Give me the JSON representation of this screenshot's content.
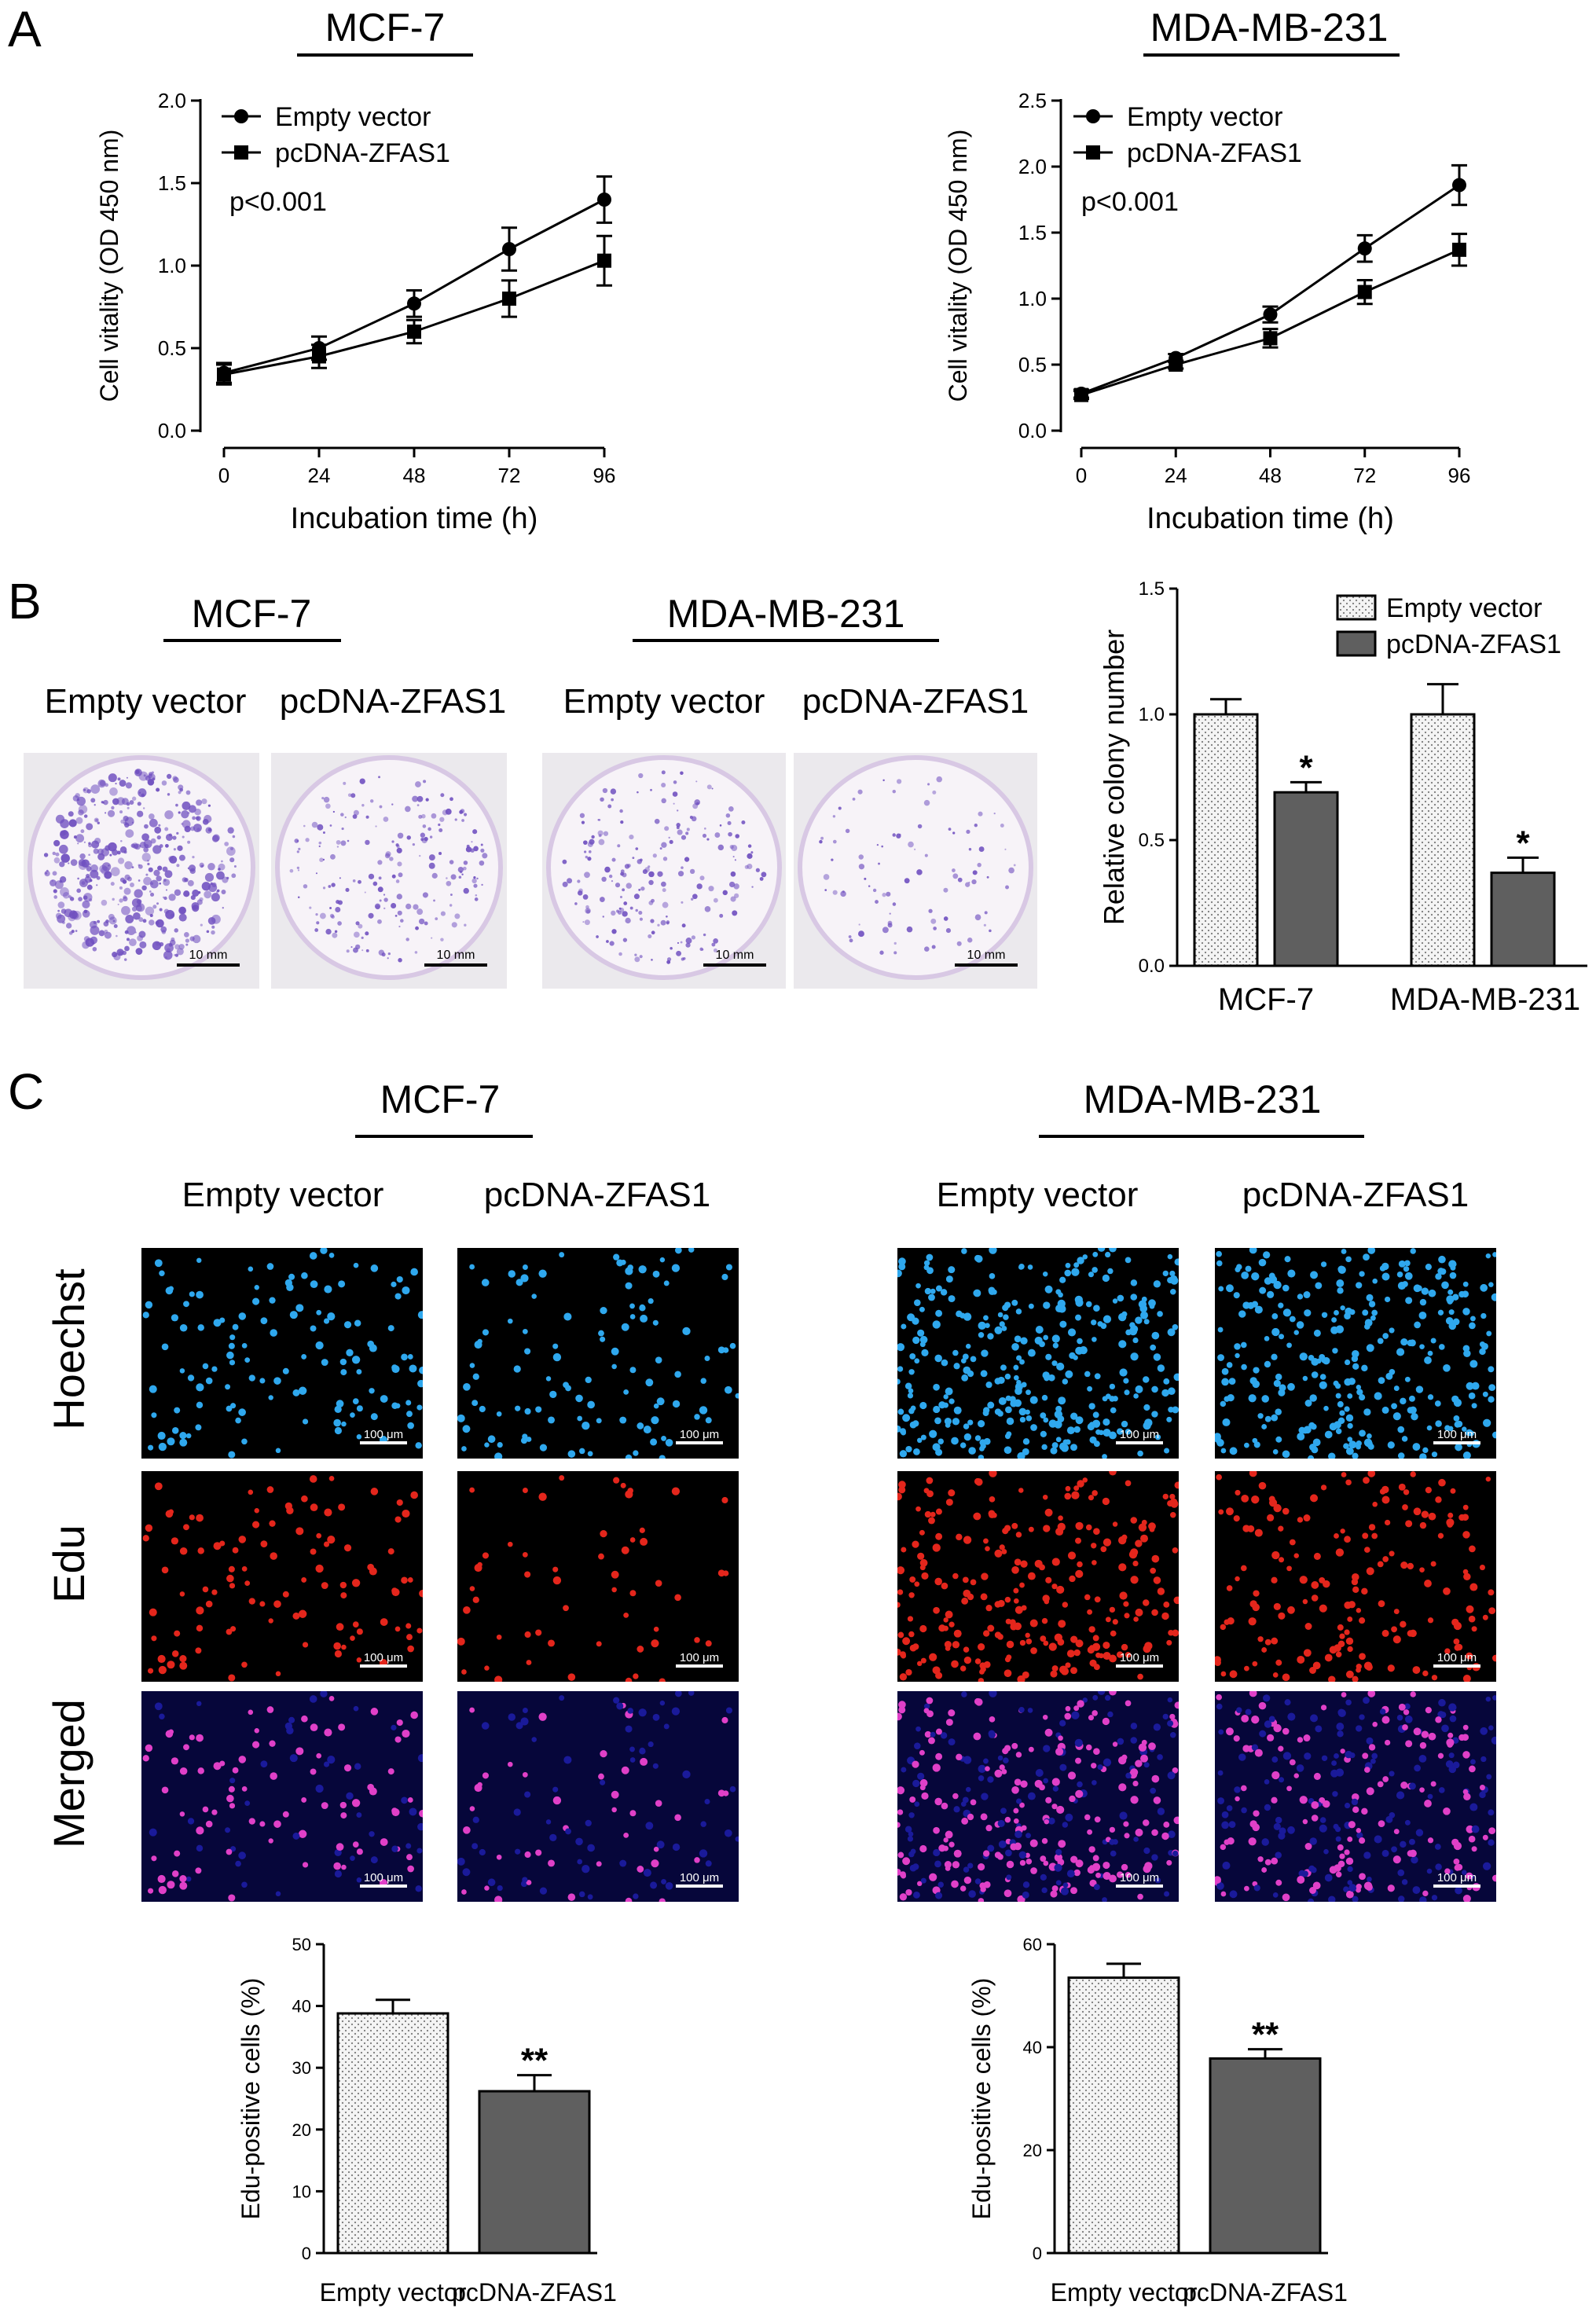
{
  "panels": {
    "a": {
      "letter": "A",
      "charts": [
        {
          "title": "MCF-7",
          "stat": "p<0.001"
        },
        {
          "title": "MDA-MB-231",
          "stat": "p<0.001"
        }
      ]
    },
    "b": {
      "letter": "B",
      "groups": [
        {
          "title": "MCF-7",
          "columns": [
            "Empty vector",
            "pcDNA-ZFAS1"
          ]
        },
        {
          "title": "MDA-MB-231",
          "columns": [
            "Empty vector",
            "pcDNA-ZFAS1"
          ]
        }
      ],
      "scale_bar": "10 mm",
      "colony_density": [
        {
          "group": "MCF-7",
          "condition": "Empty vector",
          "level": "high"
        },
        {
          "group": "MCF-7",
          "condition": "pcDNA-ZFAS1",
          "level": "medium"
        },
        {
          "group": "MDA-MB-231",
          "condition": "Empty vector",
          "level": "medium"
        },
        {
          "group": "MDA-MB-231",
          "condition": "pcDNA-ZFAS1",
          "level": "low"
        }
      ]
    },
    "c": {
      "letter": "C",
      "groups": [
        {
          "title": "MCF-7",
          "columns": [
            "Empty vector",
            "pcDNA-ZFAS1"
          ]
        },
        {
          "title": "MDA-MB-231",
          "columns": [
            "Empty vector",
            "pcDNA-ZFAS1"
          ]
        }
      ],
      "rows": [
        "Hoechst",
        "Edu",
        "Merged"
      ],
      "scale_bar": "100 μm"
    }
  },
  "colors": {
    "line": "#000000",
    "bar_empty": "#f4f4f4",
    "bar_zfas1": "#5f5f5f",
    "hoechst": "#2fa8ee",
    "edu": "#e4261c",
    "merged_nuclei": "#e040c8",
    "merged_bg": "#1a1a9a",
    "plate_stain": "#7050c0"
  },
  "chart_data": [
    {
      "type": "line",
      "panel": "A",
      "title": "MCF-7",
      "xlabel": "Incubation time (h)",
      "ylabel": "Cell vitality (OD 450 nm)",
      "x": [
        0,
        24,
        48,
        72,
        96
      ],
      "xlim": [
        0,
        96
      ],
      "ylim": [
        0,
        2.0
      ],
      "yticks": [
        "0.0",
        "0.5",
        "1.0",
        "1.5",
        "2.0"
      ],
      "legend": "top-left",
      "series": [
        {
          "name": "Empty vector",
          "marker": "circle",
          "values": [
            0.35,
            0.5,
            0.77,
            1.1,
            1.4
          ],
          "err": [
            0.06,
            0.07,
            0.08,
            0.13,
            0.14
          ]
        },
        {
          "name": "pcDNA-ZFAS1",
          "marker": "square",
          "values": [
            0.34,
            0.45,
            0.6,
            0.8,
            1.03
          ],
          "err": [
            0.06,
            0.07,
            0.07,
            0.11,
            0.15
          ]
        }
      ]
    },
    {
      "type": "line",
      "panel": "A",
      "title": "MDA-MB-231",
      "xlabel": "Incubation time (h)",
      "ylabel": "Cell vitality (OD 450 nm)",
      "x": [
        0,
        24,
        48,
        72,
        96
      ],
      "xlim": [
        0,
        96
      ],
      "ylim": [
        0,
        2.5
      ],
      "yticks": [
        "0.0",
        "0.5",
        "1.0",
        "1.5",
        "2.0",
        "2.5"
      ],
      "legend": "top-left",
      "series": [
        {
          "name": "Empty vector",
          "marker": "circle",
          "values": [
            0.28,
            0.55,
            0.88,
            1.38,
            1.86
          ],
          "err": [
            0.03,
            0.03,
            0.06,
            0.1,
            0.15
          ]
        },
        {
          "name": "pcDNA-ZFAS1",
          "marker": "square",
          "values": [
            0.27,
            0.5,
            0.7,
            1.05,
            1.37
          ],
          "err": [
            0.03,
            0.03,
            0.07,
            0.09,
            0.12
          ]
        }
      ]
    },
    {
      "type": "bar",
      "panel": "B",
      "ylabel": "Relative colony number",
      "categories": [
        "MCF-7",
        "MDA-MB-231"
      ],
      "ylim": [
        0,
        1.5
      ],
      "yticks": [
        "0.0",
        "0.5",
        "1.0",
        "1.5"
      ],
      "legend": "top-right",
      "series": [
        {
          "name": "Empty vector",
          "values": [
            1.0,
            1.0
          ],
          "err": [
            0.06,
            0.12
          ],
          "sig": [
            "",
            ""
          ]
        },
        {
          "name": "pcDNA-ZFAS1",
          "values": [
            0.69,
            0.37
          ],
          "err": [
            0.04,
            0.06
          ],
          "sig": [
            "*",
            "*"
          ]
        }
      ]
    },
    {
      "type": "bar",
      "panel": "C",
      "group": "MCF-7",
      "ylabel": "Edu-positive cells (%)",
      "categories": [
        "Empty vector",
        "pcDNA-ZFAS1"
      ],
      "ylim": [
        0,
        50
      ],
      "yticks": [
        "0",
        "10",
        "20",
        "30",
        "40",
        "50"
      ],
      "values": [
        38.8,
        26.2
      ],
      "err": [
        2.2,
        2.6
      ],
      "sig": [
        "",
        "**"
      ]
    },
    {
      "type": "bar",
      "panel": "C",
      "group": "MDA-MB-231",
      "ylabel": "Edu-positive cells (%)",
      "categories": [
        "Empty vector",
        "pcDNA-ZFAS1"
      ],
      "ylim": [
        0,
        60
      ],
      "yticks": [
        "0",
        "20",
        "40",
        "60"
      ],
      "values": [
        53.5,
        37.8
      ],
      "err": [
        2.7,
        1.8
      ],
      "sig": [
        "",
        "**"
      ]
    }
  ]
}
